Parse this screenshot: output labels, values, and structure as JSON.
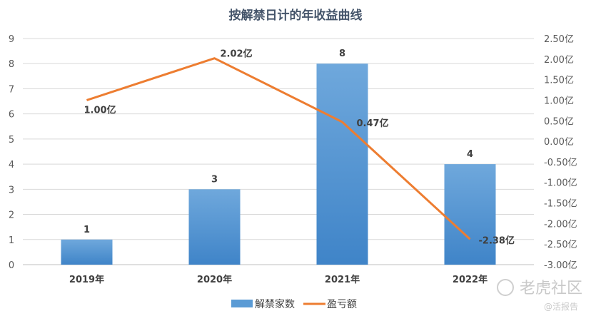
{
  "chart_data": {
    "type": "bar",
    "title": "按解禁日计的年收益曲线",
    "categories": [
      "2019年",
      "2020年",
      "2021年",
      "2022年"
    ],
    "series": [
      {
        "name": "解禁家数",
        "type": "bar",
        "axis": "left",
        "values": [
          1,
          3,
          8,
          4
        ],
        "labels": [
          "1",
          "3",
          "8",
          "4"
        ],
        "color": "#5b9bd5"
      },
      {
        "name": "盈亏额",
        "type": "line",
        "axis": "right",
        "values": [
          1.0,
          2.02,
          0.47,
          -2.38
        ],
        "labels": [
          "1.00亿",
          "2.02亿",
          "0.47亿",
          "-2.38亿"
        ],
        "color": "#ed7d31"
      }
    ],
    "yleft": {
      "ylim": [
        0,
        9
      ],
      "ticks": [
        "0",
        "1",
        "2",
        "3",
        "4",
        "5",
        "6",
        "7",
        "8",
        "9"
      ]
    },
    "yright": {
      "ylim": [
        -3.0,
        2.5
      ],
      "ticks": [
        "2.50亿",
        "2.00亿",
        "1.50亿",
        "1.00亿",
        "0.50亿",
        "0.00亿",
        "-0.50亿",
        "-1.00亿",
        "-1.50亿",
        "-2.00亿",
        "-2.50亿",
        "-3.00亿"
      ]
    },
    "grid": true,
    "legend": "bottom"
  },
  "watermark": {
    "main": "老虎社区",
    "sub": "@活报告"
  }
}
